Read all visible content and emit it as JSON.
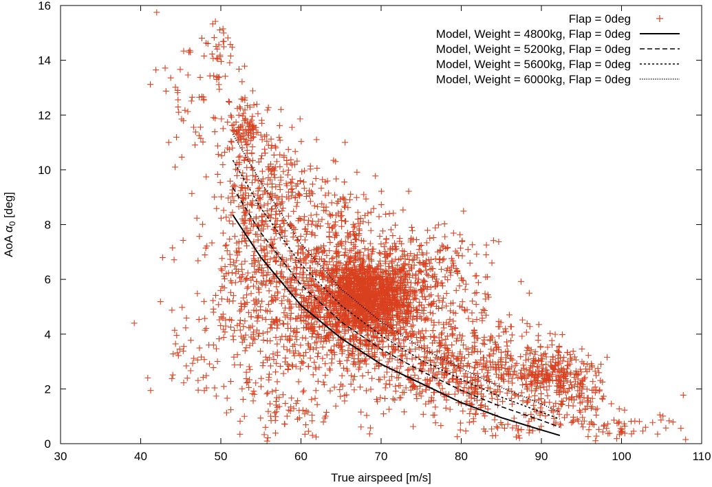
{
  "chart_data": {
    "type": "scatter",
    "title": "",
    "xlabel": "True airspeed [m/s]",
    "ylabel_prefix": "AoA ",
    "ylabel_symbol": "α",
    "ylabel_subscript": "0",
    "ylabel_suffix": " [deg]",
    "xlim": [
      30,
      110
    ],
    "ylim": [
      0,
      16
    ],
    "xticks": [
      30,
      40,
      50,
      60,
      70,
      80,
      90,
      100,
      110
    ],
    "yticks": [
      0,
      2,
      4,
      6,
      8,
      10,
      12,
      14,
      16
    ],
    "legend_position": "top-right",
    "scatter_color": "#d9401f",
    "line_color": "#000000",
    "scatter_series": {
      "name": "Flap = 0deg",
      "clusters": [
        {
          "cx": 68,
          "cy": 5.3,
          "sx": 3.0,
          "sy": 0.7,
          "n": 1500
        },
        {
          "cx": 66,
          "cy": 4.4,
          "sx": 9.0,
          "sy": 1.5,
          "n": 900
        },
        {
          "cx": 60,
          "cy": 6.0,
          "sx": 5.0,
          "sy": 1.6,
          "n": 450
        },
        {
          "cx": 54,
          "cy": 8.5,
          "sx": 2.5,
          "sy": 1.6,
          "n": 230
        },
        {
          "cx": 53,
          "cy": 11.5,
          "sx": 1.2,
          "sy": 0.5,
          "n": 90
        },
        {
          "cx": 47,
          "cy": 12.5,
          "sx": 2.5,
          "sy": 1.4,
          "n": 60
        },
        {
          "cx": 50,
          "cy": 14.4,
          "sx": 1.0,
          "sy": 0.6,
          "n": 25
        },
        {
          "cx": 82,
          "cy": 2.5,
          "sx": 6.0,
          "sy": 0.8,
          "n": 500
        },
        {
          "cx": 92,
          "cy": 2.6,
          "sx": 2.5,
          "sy": 0.4,
          "n": 180
        },
        {
          "cx": 94,
          "cy": 1.6,
          "sx": 2.0,
          "sy": 0.5,
          "n": 80
        },
        {
          "cx": 75,
          "cy": 6.3,
          "sx": 4.0,
          "sy": 0.8,
          "n": 180
        },
        {
          "cx": 100,
          "cy": 0.6,
          "sx": 3.5,
          "sy": 0.3,
          "n": 50
        },
        {
          "cx": 58,
          "cy": 1.2,
          "sx": 3.0,
          "sy": 0.6,
          "n": 60
        },
        {
          "cx": 46,
          "cy": 3.0,
          "sx": 2.0,
          "sy": 0.6,
          "n": 25
        },
        {
          "cx": 58,
          "cy": 9.5,
          "sx": 3.0,
          "sy": 0.9,
          "n": 120
        },
        {
          "cx": 66,
          "cy": 8.0,
          "sx": 3.0,
          "sy": 0.7,
          "n": 100
        },
        {
          "cx": 87,
          "cy": 0.6,
          "sx": 4.0,
          "sy": 0.4,
          "n": 40
        }
      ],
      "outliers": [
        [
          42,
          15.75
        ],
        [
          39.2,
          4.4
        ],
        [
          43.5,
          11.0
        ],
        [
          44.3,
          10.1
        ],
        [
          108,
          0.15
        ],
        [
          104.5,
          0.35
        ],
        [
          65.5,
          11.0
        ],
        [
          57.5,
          12.2
        ],
        [
          92,
          1.2
        ],
        [
          83,
          0.45
        ]
      ]
    },
    "series": [
      {
        "name": "Model, Weight = 4800kg, Flap = 0deg",
        "dash": "",
        "x": [
          51.5,
          55,
          60,
          65,
          70,
          75,
          80,
          85,
          90,
          92.3
        ],
        "y": [
          8.35,
          6.8,
          5.05,
          3.85,
          2.9,
          2.2,
          1.5,
          0.95,
          0.5,
          0.3
        ]
      },
      {
        "name": "Model, Weight = 5200kg, Flap = 0deg",
        "dash": "7,4",
        "x": [
          51.5,
          55,
          60,
          65,
          70,
          75,
          80,
          85,
          90,
          92.3
        ],
        "y": [
          9.35,
          7.7,
          5.8,
          4.45,
          3.45,
          2.65,
          1.95,
          1.35,
          0.85,
          0.6
        ]
      },
      {
        "name": "Model, Weight = 5600kg, Flap = 0deg",
        "dash": "3,3",
        "x": [
          51.5,
          55,
          60,
          65,
          70,
          75,
          80,
          85,
          90,
          92.3
        ],
        "y": [
          10.35,
          8.6,
          6.55,
          5.05,
          3.95,
          3.05,
          2.35,
          1.7,
          1.15,
          0.9
        ]
      },
      {
        "name": "Model, Weight = 6000kg, Flap = 0deg",
        "dash": "1.2,2",
        "x": [
          51.5,
          55,
          60,
          65,
          70,
          75,
          80,
          85,
          90,
          92.3
        ],
        "y": [
          11.3,
          9.55,
          7.3,
          5.65,
          4.45,
          3.5,
          2.75,
          2.05,
          1.45,
          1.15
        ]
      }
    ]
  }
}
